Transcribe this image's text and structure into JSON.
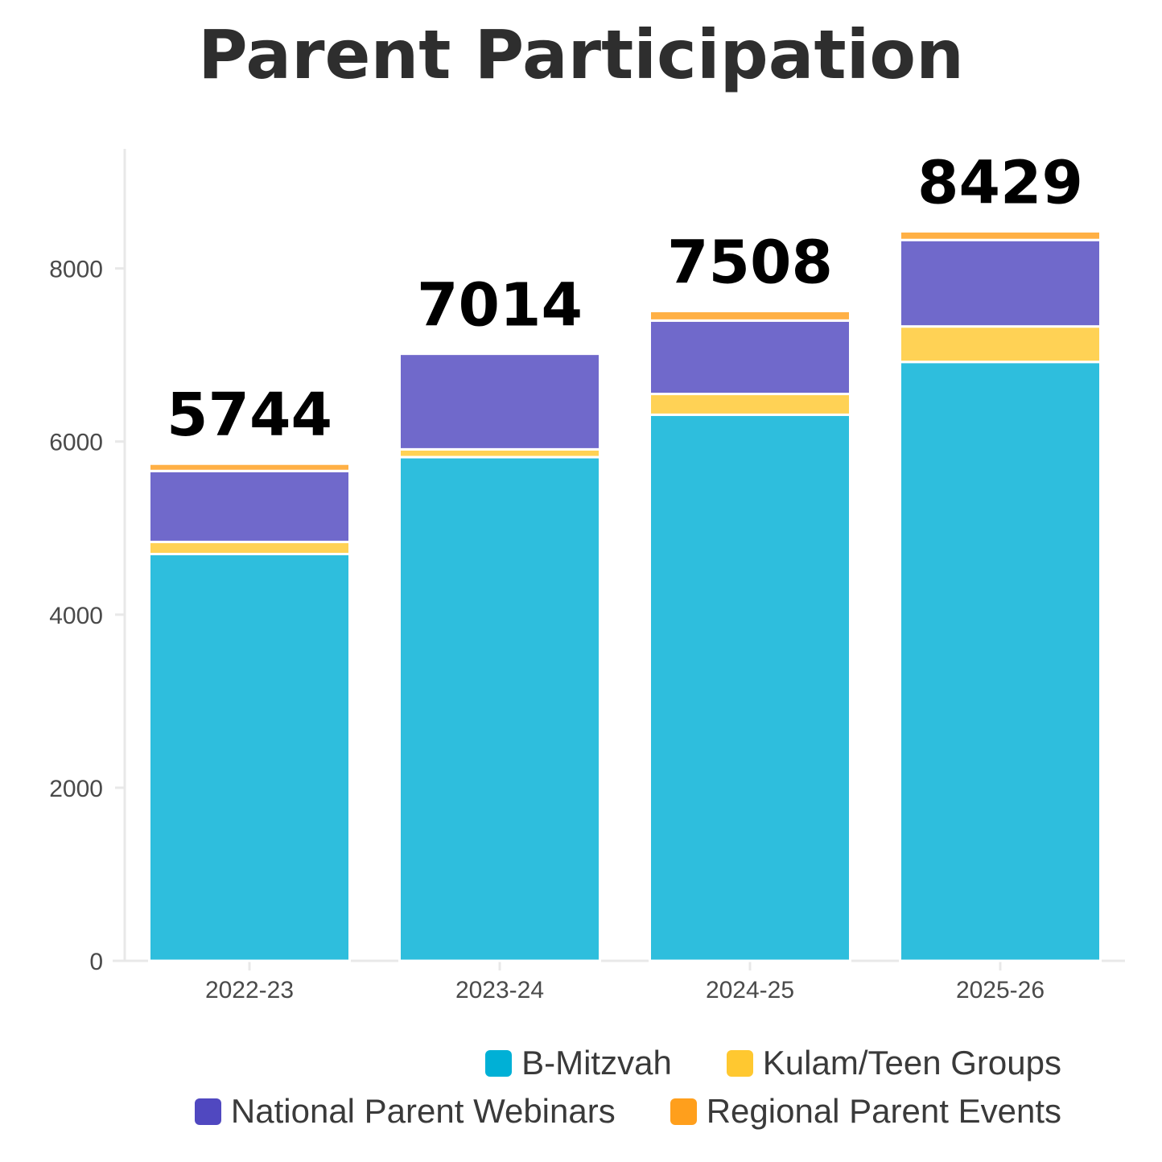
{
  "chart_data": {
    "type": "bar",
    "stacked": true,
    "title": "Parent Participation",
    "xlabel": "",
    "ylabel": "",
    "categories": [
      "2022-23",
      "2023-24",
      "2024-25",
      "2025-26"
    ],
    "ylim": [
      0,
      9400
    ],
    "yticks": [
      "0",
      "2000",
      "4000",
      "6000",
      "8000"
    ],
    "series": [
      {
        "name": "B-Mitzvah",
        "color": "#00b0d6",
        "values": [
          4700,
          5820,
          6310,
          6920
        ]
      },
      {
        "name": "Kulam/Teen Groups",
        "color": "#ffc830",
        "values": [
          140,
          90,
          240,
          410
        ]
      },
      {
        "name": "National Parent Webinars",
        "color": "#5048c0",
        "values": [
          820,
          1104,
          848,
          999
        ]
      },
      {
        "name": "Regional Parent Events",
        "color": "#ff9f1c",
        "values": [
          84,
          0,
          110,
          100
        ]
      }
    ],
    "totals": [
      "5744",
      "7014",
      "7508",
      "8429"
    ],
    "grid": false,
    "legend_position": "bottom-right"
  }
}
